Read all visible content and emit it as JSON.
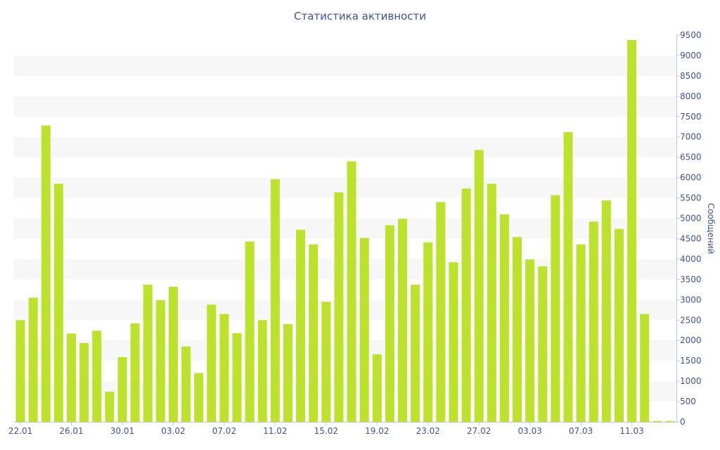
{
  "chart_data": {
    "type": "bar",
    "title": "Статистика активности",
    "ylabel": "Сообщений",
    "xlabel": "",
    "y_axis_position": "right",
    "grid": "horizontal alternating bands",
    "legend": "none",
    "ylim": [
      0,
      9500
    ],
    "yticks": [
      0,
      500,
      1000,
      1500,
      2000,
      2500,
      3000,
      3500,
      4000,
      4500,
      5000,
      5500,
      6000,
      6500,
      7000,
      7500,
      8000,
      8500,
      9000,
      9500
    ],
    "bar_color": "#bde22d",
    "band_color": "#f7f7f7",
    "text_color": "#3f5196",
    "x_tick_labels": [
      {
        "index": 0,
        "label": "22.01"
      },
      {
        "index": 4,
        "label": "26.01"
      },
      {
        "index": 8,
        "label": "30.01"
      },
      {
        "index": 12,
        "label": "03.02"
      },
      {
        "index": 16,
        "label": "07.02"
      },
      {
        "index": 20,
        "label": "11.02"
      },
      {
        "index": 24,
        "label": "15.02"
      },
      {
        "index": 28,
        "label": "19.02"
      },
      {
        "index": 32,
        "label": "23.02"
      },
      {
        "index": 36,
        "label": "27.02"
      },
      {
        "index": 40,
        "label": "03.03"
      },
      {
        "index": 44,
        "label": "07.03"
      },
      {
        "index": 48,
        "label": "11.03"
      }
    ],
    "values": [
      2500,
      3050,
      7280,
      5850,
      2170,
      1940,
      2240,
      740,
      1590,
      2420,
      3370,
      2990,
      3320,
      1850,
      1200,
      2880,
      2650,
      2180,
      4430,
      2500,
      5960,
      2400,
      4720,
      4360,
      2950,
      5640,
      6400,
      4520,
      1660,
      4830,
      4990,
      3370,
      4410,
      5400,
      3920,
      5730,
      6680,
      5850,
      5100,
      4540,
      3990,
      3820,
      5570,
      7120,
      4360,
      4920,
      5440,
      4740,
      9380,
      2650,
      20,
      20
    ]
  }
}
